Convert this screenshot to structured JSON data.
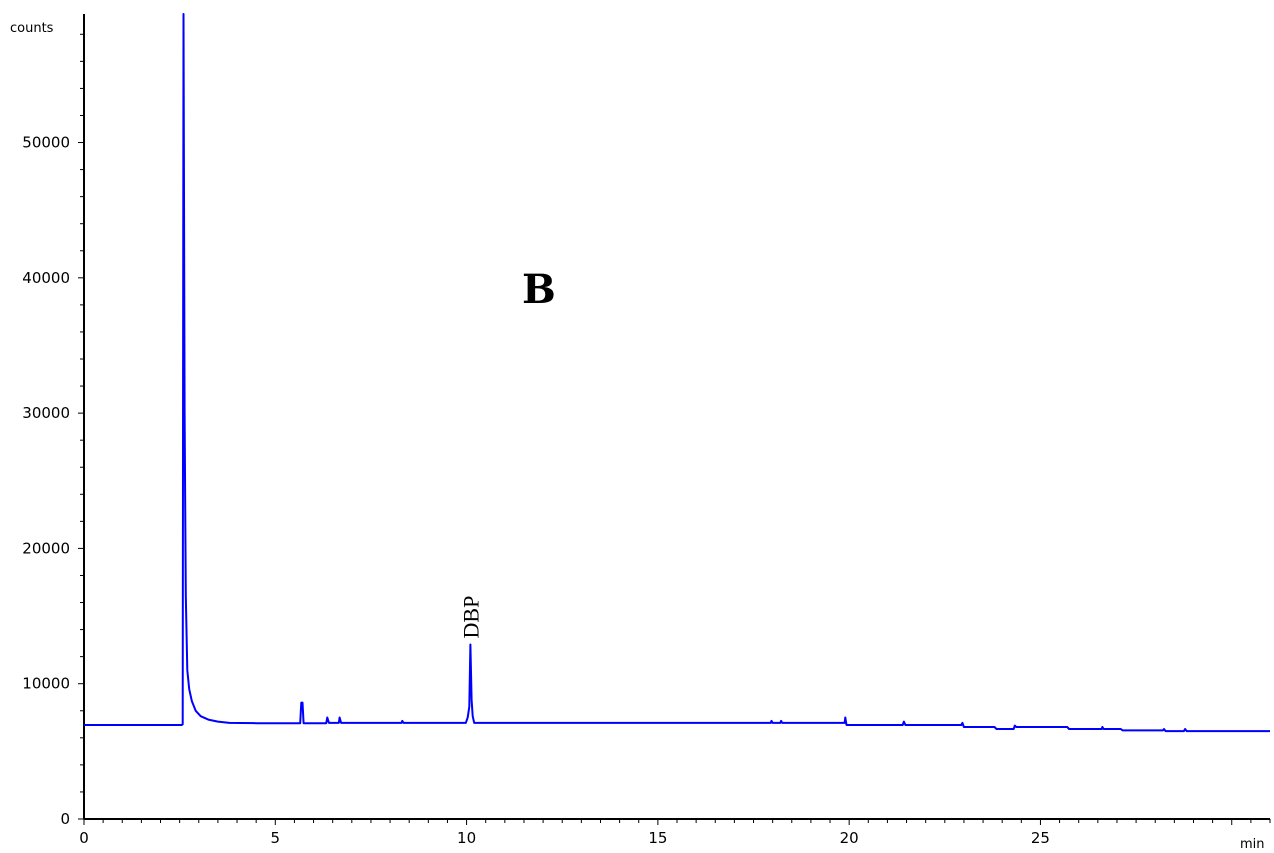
{
  "chart_data": {
    "type": "line",
    "title": "",
    "panel_label": "B",
    "xlabel": "min",
    "ylabel": "counts",
    "xlim": [
      0,
      31
    ],
    "ylim": [
      0,
      59500
    ],
    "x_ticks": [
      "0",
      "5",
      "10",
      "15",
      "20",
      "25"
    ],
    "y_ticks": [
      "0",
      "10000",
      "20000",
      "30000",
      "40000",
      "50000"
    ],
    "x_tick_values": [
      0,
      5,
      10,
      15,
      20,
      25
    ],
    "y_tick_values": [
      0,
      10000,
      20000,
      30000,
      40000,
      50000
    ],
    "line_color": "#0000ff",
    "grid": false,
    "annotations": [
      {
        "text": "DBP",
        "x": 10.1,
        "y": 12900
      }
    ],
    "series": [
      {
        "points": [
          [
            0,
            6950
          ],
          [
            2.55,
            6950
          ],
          [
            2.58,
            7000
          ],
          [
            2.6,
            59500
          ],
          [
            2.63,
            30000
          ],
          [
            2.66,
            16500
          ],
          [
            2.7,
            11000
          ],
          [
            2.75,
            9600
          ],
          [
            2.82,
            8700
          ],
          [
            2.92,
            8000
          ],
          [
            3.05,
            7600
          ],
          [
            3.25,
            7350
          ],
          [
            3.5,
            7200
          ],
          [
            3.8,
            7100
          ],
          [
            4.5,
            7080
          ],
          [
            5.65,
            7080
          ],
          [
            5.68,
            8600
          ],
          [
            5.71,
            8600
          ],
          [
            5.74,
            7080
          ],
          [
            6.33,
            7080
          ],
          [
            6.36,
            7500
          ],
          [
            6.4,
            7100
          ],
          [
            6.66,
            7100
          ],
          [
            6.68,
            7500
          ],
          [
            6.72,
            7100
          ],
          [
            8.3,
            7100
          ],
          [
            8.32,
            7250
          ],
          [
            8.35,
            7100
          ],
          [
            9.98,
            7100
          ],
          [
            10.03,
            7500
          ],
          [
            10.07,
            8300
          ],
          [
            10.1,
            12900
          ],
          [
            10.13,
            8800
          ],
          [
            10.16,
            7600
          ],
          [
            10.2,
            7100
          ],
          [
            17.95,
            7100
          ],
          [
            17.97,
            7250
          ],
          [
            18.0,
            7100
          ],
          [
            18.2,
            7100
          ],
          [
            18.22,
            7250
          ],
          [
            18.25,
            7100
          ],
          [
            19.88,
            7100
          ],
          [
            19.9,
            7500
          ],
          [
            19.93,
            6950
          ],
          [
            21.4,
            6950
          ],
          [
            21.43,
            7200
          ],
          [
            21.47,
            6950
          ],
          [
            22.93,
            6950
          ],
          [
            22.96,
            7100
          ],
          [
            23.0,
            6800
          ],
          [
            23.8,
            6800
          ],
          [
            23.85,
            6650
          ],
          [
            24.3,
            6650
          ],
          [
            24.33,
            6900
          ],
          [
            24.37,
            6800
          ],
          [
            25.7,
            6800
          ],
          [
            25.75,
            6650
          ],
          [
            26.6,
            6650
          ],
          [
            26.62,
            6800
          ],
          [
            26.65,
            6650
          ],
          [
            27.1,
            6650
          ],
          [
            27.15,
            6550
          ],
          [
            28.2,
            6550
          ],
          [
            28.23,
            6650
          ],
          [
            28.27,
            6500
          ],
          [
            28.75,
            6500
          ],
          [
            28.78,
            6650
          ],
          [
            28.82,
            6500
          ],
          [
            31,
            6500
          ]
        ]
      }
    ]
  }
}
